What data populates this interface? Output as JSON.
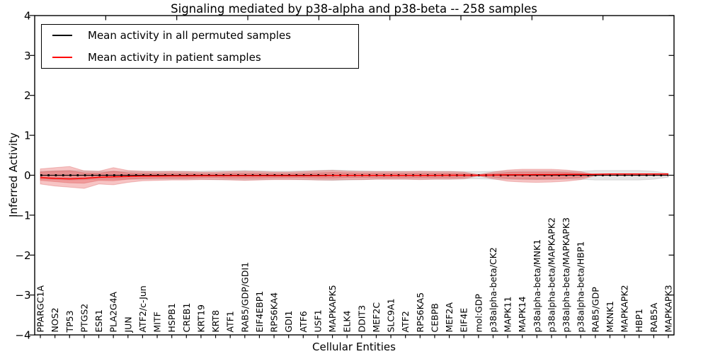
{
  "title": "Signaling mediated by p38-alpha and p38-beta -- 258 samples",
  "legend": {
    "items": [
      {
        "label": "Mean activity in all permuted samples",
        "color": "#000000"
      },
      {
        "label": "Mean activity in patient samples",
        "color": "#ff0000"
      }
    ]
  },
  "colors": {
    "permuted_line": "#000000",
    "patient_line": "#ff0000",
    "patient_band": "rgba(228,58,58,0.30)",
    "permuted_band": "rgba(0,0,0,0.10)",
    "frame": "#000000"
  },
  "chart_data": {
    "type": "line",
    "title": "Signaling mediated by p38-alpha and p38-beta -- 258 samples",
    "xlabel": "Cellular Entities",
    "ylabel": "Inferred Activity",
    "ylim": [
      -4,
      4
    ],
    "yticks": [
      4,
      3,
      2,
      1,
      0,
      -1,
      -2,
      -3,
      -4
    ],
    "grid": false,
    "legend_position": "upper left",
    "categories": [
      "PPARGC1A",
      "NOS2",
      "TP53",
      "PTGS2",
      "ESR1",
      "PLA2G4A",
      "JUN",
      "ATF2/c-Jun",
      "MITF",
      "HSPB1",
      "CREB1",
      "KRT19",
      "KRT8",
      "ATF1",
      "RAB5/GDP/GDI1",
      "EIF4EBP1",
      "RPS6KA4",
      "GDI1",
      "ATF6",
      "USF1",
      "MAPKAPK5",
      "ELK4",
      "DDIT3",
      "MEF2C",
      "SLC9A1",
      "ATF2",
      "RPS6KA5",
      "CEBPB",
      "MEF2A",
      "EIF4E",
      "mol:GDP",
      "p38alpha-beta/CK2",
      "MAPK11",
      "MAPK14",
      "p38alpha-beta/MNK1",
      "p38alpha-beta/MAPKAPK2",
      "p38alpha-beta/MAPKAPK3",
      "p38alpha-beta/HBP1",
      "RAB5/GDP",
      "MKNK1",
      "MAPKAPK2",
      "HBP1",
      "RAB5A",
      "MAPKAPK3"
    ],
    "series": [
      {
        "key": "permuted-mean",
        "name": "Mean activity in all permuted samples",
        "color": "#000000",
        "width": 1,
        "marker": "+",
        "values": [
          0,
          0,
          0,
          0,
          0,
          0,
          0,
          0,
          0,
          0,
          0,
          0,
          0,
          0,
          0,
          0,
          0,
          0,
          0,
          0,
          0,
          0,
          0,
          0,
          0,
          0,
          0,
          0,
          0,
          0,
          0,
          0,
          0,
          0,
          0,
          0,
          0,
          0,
          0,
          0,
          0,
          0,
          0,
          0
        ]
      },
      {
        "key": "patient-mean",
        "name": "Mean activity in patient samples",
        "color": "#ff0000",
        "width": 1.5,
        "marker": null,
        "values": [
          -0.06,
          -0.08,
          -0.09,
          -0.08,
          -0.05,
          -0.04,
          -0.03,
          -0.02,
          -0.02,
          -0.015,
          -0.015,
          -0.01,
          -0.01,
          -0.01,
          -0.01,
          -0.01,
          -0.01,
          -0.01,
          -0.01,
          -0.01,
          -0.005,
          -0.005,
          -0.005,
          -0.005,
          -0.005,
          -0.005,
          -0.005,
          -0.005,
          0,
          0,
          0,
          0.005,
          0.01,
          0.01,
          0.015,
          0.015,
          0.02,
          0.02,
          0.025,
          0.03,
          0.03,
          0.03,
          0.03,
          0.03
        ]
      }
    ],
    "bands": [
      {
        "name": "permuted-std",
        "fill": "rgba(0,0,0,0.10)",
        "edge": "rgba(0,0,0,0.10)",
        "upper": [
          0.1,
          0.11,
          0.12,
          0.11,
          0.1,
          0.1,
          0.1,
          0.1,
          0.1,
          0.1,
          0.1,
          0.1,
          0.11,
          0.11,
          0.12,
          0.11,
          0.1,
          0.1,
          0.11,
          0.12,
          0.13,
          0.12,
          0.11,
          0.1,
          0.1,
          0.1,
          0.1,
          0.1,
          0.1,
          0.09,
          0.09,
          0.1,
          0.1,
          0.11,
          0.11,
          0.11,
          0.1,
          0.1,
          0.12,
          0.12,
          0.12,
          0.12,
          0.1,
          0.05
        ],
        "lower": [
          -0.1,
          -0.11,
          -0.12,
          -0.11,
          -0.1,
          -0.1,
          -0.1,
          -0.1,
          -0.1,
          -0.1,
          -0.1,
          -0.1,
          -0.11,
          -0.11,
          -0.12,
          -0.11,
          -0.1,
          -0.1,
          -0.11,
          -0.12,
          -0.13,
          -0.12,
          -0.11,
          -0.1,
          -0.1,
          -0.1,
          -0.1,
          -0.1,
          -0.1,
          -0.09,
          -0.09,
          -0.1,
          -0.1,
          -0.11,
          -0.11,
          -0.11,
          -0.1,
          -0.1,
          -0.12,
          -0.12,
          -0.12,
          -0.12,
          -0.1,
          -0.05
        ]
      },
      {
        "name": "patient-std-outer",
        "fill": "rgba(228,58,58,0.30)",
        "edge": "rgba(205,45,45,0.25)",
        "upper": [
          0.16,
          0.19,
          0.22,
          0.11,
          0.1,
          0.19,
          0.12,
          0.1,
          0.09,
          0.1,
          0.09,
          0.08,
          0.08,
          0.09,
          0.1,
          0.09,
          0.08,
          0.08,
          0.09,
          0.11,
          0.12,
          0.1,
          0.09,
          0.09,
          0.09,
          0.09,
          0.1,
          0.09,
          0.09,
          0.08,
          0.015,
          0.08,
          0.13,
          0.15,
          0.15,
          0.15,
          0.13,
          0.09,
          0.01,
          0.008,
          0.008,
          0.008,
          0.008,
          0.008
        ],
        "lower": [
          -0.22,
          -0.27,
          -0.3,
          -0.33,
          -0.22,
          -0.24,
          -0.18,
          -0.14,
          -0.13,
          -0.12,
          -0.12,
          -0.11,
          -0.11,
          -0.12,
          -0.13,
          -0.12,
          -0.11,
          -0.11,
          -0.11,
          -0.12,
          -0.12,
          -0.11,
          -0.11,
          -0.1,
          -0.1,
          -0.1,
          -0.11,
          -0.1,
          -0.1,
          -0.09,
          -0.015,
          -0.09,
          -0.15,
          -0.17,
          -0.18,
          -0.17,
          -0.15,
          -0.11,
          -0.01,
          -0.008,
          -0.008,
          -0.008,
          -0.008,
          -0.008
        ]
      },
      {
        "name": "patient-std-inner",
        "fill": "rgba(228,58,58,0.30)",
        "edge": "rgba(205,45,45,0.25)",
        "upper": [
          0.08,
          0.1,
          0.11,
          0.06,
          0.05,
          0.1,
          0.06,
          0.05,
          0.05,
          0.05,
          0.05,
          0.04,
          0.04,
          0.05,
          0.05,
          0.05,
          0.04,
          0.04,
          0.05,
          0.06,
          0.07,
          0.06,
          0.05,
          0.05,
          0.05,
          0.05,
          0.05,
          0.05,
          0.05,
          0.04,
          0.008,
          0.04,
          0.07,
          0.08,
          0.08,
          0.08,
          0.07,
          0.05,
          0.005,
          0.005,
          0.005,
          0.005,
          0.005,
          0.005
        ],
        "lower": [
          -0.13,
          -0.16,
          -0.19,
          -0.2,
          -0.13,
          -0.14,
          -0.1,
          -0.08,
          -0.07,
          -0.07,
          -0.07,
          -0.06,
          -0.06,
          -0.07,
          -0.07,
          -0.07,
          -0.06,
          -0.06,
          -0.06,
          -0.07,
          -0.07,
          -0.06,
          -0.06,
          -0.06,
          -0.06,
          -0.06,
          -0.06,
          -0.06,
          -0.06,
          -0.05,
          -0.008,
          -0.05,
          -0.08,
          -0.09,
          -0.1,
          -0.09,
          -0.08,
          -0.06,
          -0.005,
          -0.005,
          -0.005,
          -0.005,
          -0.005,
          -0.005
        ]
      }
    ]
  }
}
